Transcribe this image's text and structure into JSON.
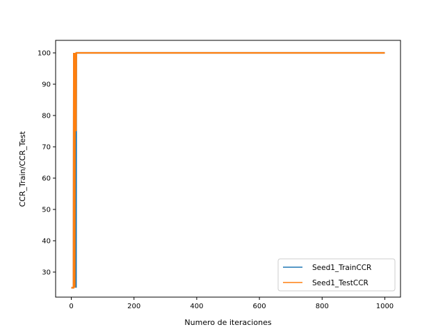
{
  "chart_data": {
    "type": "line",
    "xlabel": "Numero de iteraciones",
    "ylabel": "CCR_Train/CCR_Test",
    "xlim": [
      -50,
      1050
    ],
    "ylim": [
      22,
      104
    ],
    "xticks": [
      0,
      200,
      400,
      600,
      800,
      1000
    ],
    "yticks": [
      30,
      40,
      50,
      60,
      70,
      80,
      90,
      100
    ],
    "grid": false,
    "legend_position": "lower right",
    "series": [
      {
        "name": "Seed1_TrainCCR",
        "color": "#1f77b4",
        "x": [
          0,
          7,
          8,
          9,
          10,
          11,
          12,
          13,
          14,
          15,
          16,
          17,
          1000
        ],
        "y": [
          25,
          25,
          100,
          25,
          100,
          25,
          100,
          25,
          100,
          25,
          100,
          100,
          100
        ]
      },
      {
        "name": "Seed1_TestCCR",
        "color": "#ff7f0e",
        "x": [
          0,
          7,
          8,
          9,
          10,
          11,
          12,
          13,
          14,
          15,
          16,
          17,
          1000
        ],
        "y": [
          25,
          25,
          100,
          25,
          100,
          25,
          100,
          75,
          100,
          75,
          100,
          100,
          100
        ]
      }
    ]
  }
}
